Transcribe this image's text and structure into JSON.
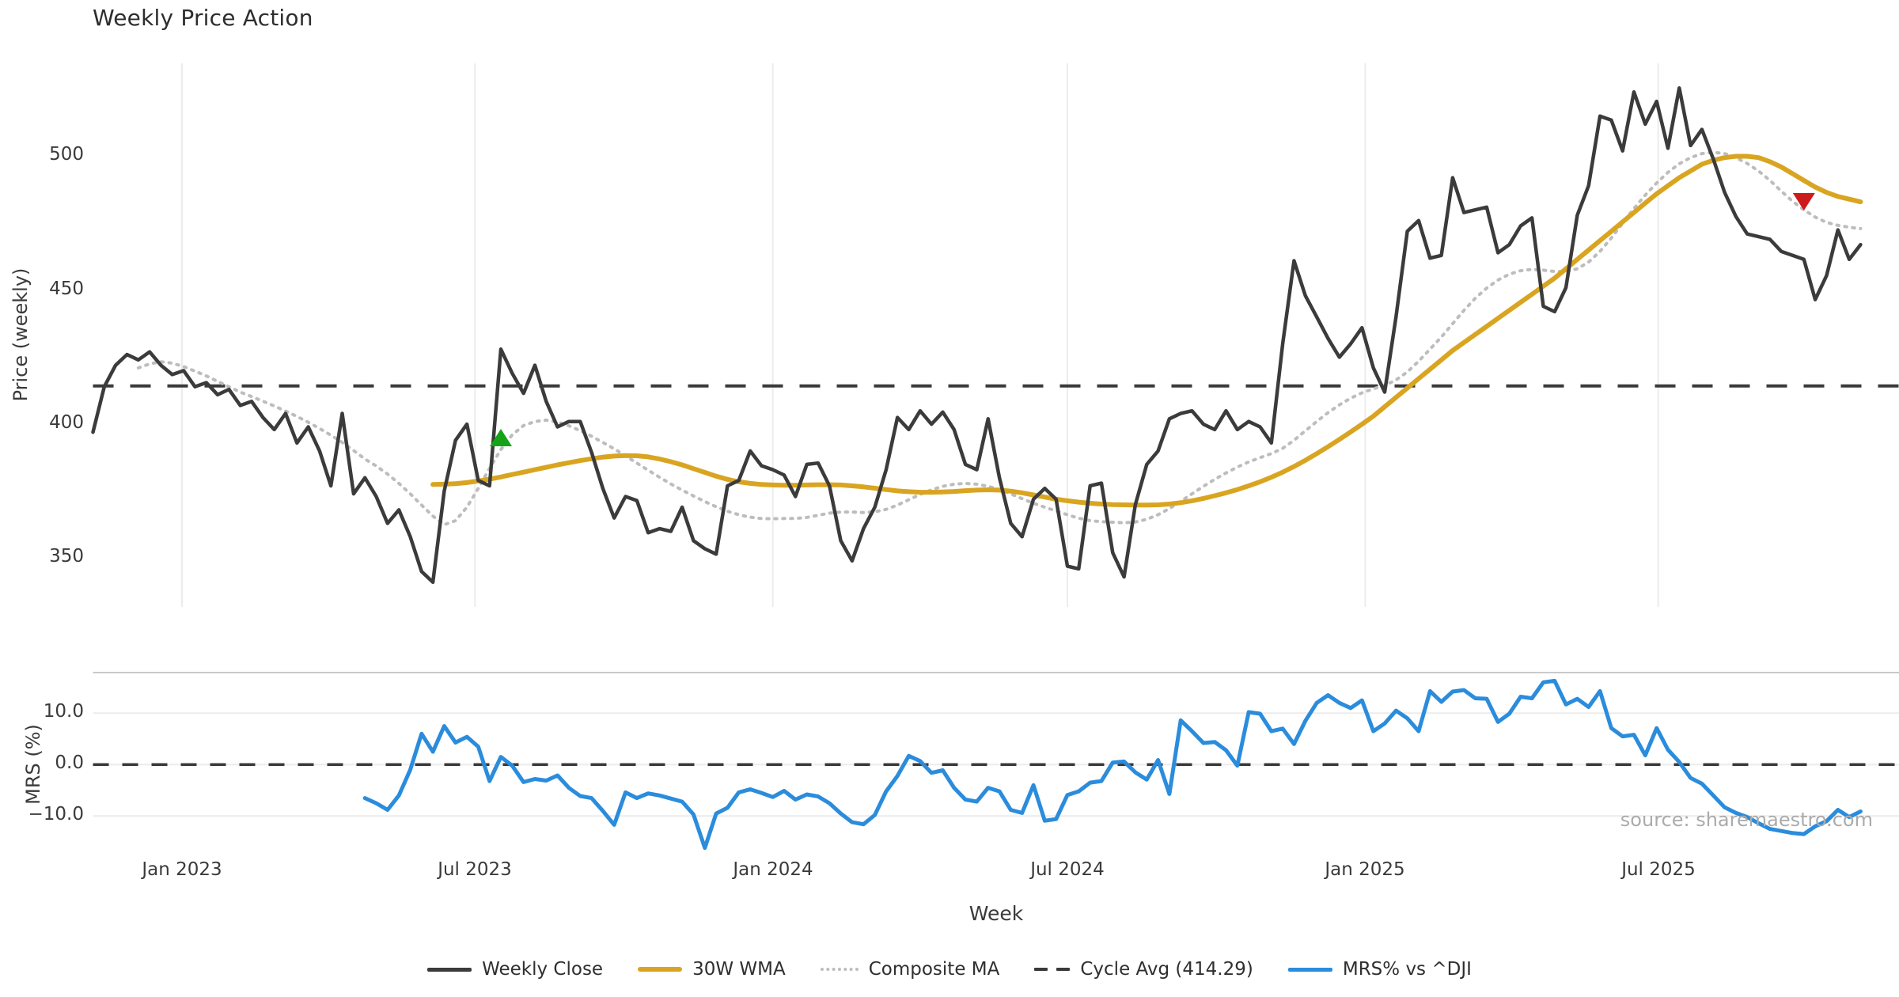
{
  "title": "Weekly Price Action",
  "source_note": "source: sharemaestro.com",
  "axes": {
    "price_label": "Price (weekly)",
    "mrs_label": "MRS (%)",
    "x_label": "Week",
    "price_ticks": [
      {
        "label": "350",
        "value": 350
      },
      {
        "label": "400",
        "value": 400
      },
      {
        "label": "450",
        "value": 450
      },
      {
        "label": "500",
        "value": 500
      }
    ],
    "mrs_ticks": [
      {
        "label": "−10.0",
        "value": -10
      },
      {
        "label": "0.0",
        "value": 0
      },
      {
        "label": "10.0",
        "value": 10
      }
    ],
    "x_ticks": [
      {
        "label": "Jan 2023",
        "date": "2023-01-01"
      },
      {
        "label": "Jul 2023",
        "date": "2023-07-01"
      },
      {
        "label": "Jan 2024",
        "date": "2024-01-01"
      },
      {
        "label": "Jul 2024",
        "date": "2024-07-01"
      },
      {
        "label": "Jan 2025",
        "date": "2025-01-01"
      },
      {
        "label": "Jul 2025",
        "date": "2025-07-01"
      }
    ]
  },
  "legend": {
    "items": [
      {
        "label": "Weekly Close",
        "series": "close"
      },
      {
        "label": "30W WMA",
        "series": "wma30"
      },
      {
        "label": "Composite MA",
        "series": "composite"
      },
      {
        "label": "Cycle Avg (414.29)",
        "series": "cycle_avg"
      },
      {
        "label": "MRS% vs ^DJI",
        "series": "mrs"
      }
    ]
  },
  "colors": {
    "close": "#3b3b3b",
    "wma30": "#d9a521",
    "composite": "#bdbdbd",
    "cycle_avg": "#3a3a3a",
    "mrs": "#2b8cdc",
    "buy_marker": "#17a317",
    "sell_marker": "#cd1a1a",
    "grid": "#ececec",
    "panel_border": "#c9c9c9",
    "text": "#3a3a3a",
    "muted_text": "#ababab"
  },
  "chart_data": {
    "type": "line",
    "start_date": "2022-11-07",
    "frequency": "weekly",
    "panels": [
      {
        "id": "price",
        "ylabel": "Price (weekly)",
        "ylim": [
          331.8,
          534.7
        ],
        "grid": "vertical"
      },
      {
        "id": "mrs",
        "ylabel": "MRS (%)",
        "ylim": [
          -17.8,
          17.9
        ],
        "grid": "horizontal"
      }
    ],
    "series": [
      {
        "name": "Weekly Close",
        "panel": "price",
        "color_key": "close",
        "style": "solid",
        "width": 4.5,
        "values": [
          397,
          414,
          422,
          426,
          424,
          427,
          422,
          418.5,
          420,
          414,
          415.5,
          411,
          413,
          407,
          408.5,
          402.5,
          398,
          404,
          393,
          399,
          390,
          377,
          404,
          374,
          380,
          373,
          363,
          368,
          358,
          345,
          341,
          375,
          394,
          400,
          379,
          377,
          428,
          419,
          411.5,
          422,
          408.5,
          399,
          401,
          401,
          389.5,
          376,
          365,
          373,
          371.5,
          359.5,
          361,
          360,
          369,
          356.5,
          353.5,
          351.5,
          377,
          379,
          390,
          384.5,
          383,
          381,
          373,
          385,
          385.5,
          377,
          356.5,
          349,
          361,
          369,
          383,
          402.5,
          398,
          405,
          400,
          404.5,
          398,
          385,
          383,
          402,
          380,
          363,
          358,
          372,
          376,
          372,
          347,
          346,
          377,
          378,
          352,
          343,
          370,
          385,
          390,
          402,
          404,
          405,
          400,
          398,
          405,
          398,
          401,
          399,
          393,
          430,
          461,
          448,
          440,
          432,
          425,
          430,
          436,
          421,
          412,
          440,
          472,
          476,
          462,
          463,
          492,
          479,
          480,
          481,
          464,
          467,
          474,
          477,
          444,
          442,
          451,
          478,
          489,
          515,
          513.5,
          502,
          524,
          512,
          520.5,
          503,
          525.5,
          504,
          510,
          499,
          486.5,
          477.5,
          471,
          470,
          469,
          464.5,
          463,
          461.5,
          446.5,
          455.5,
          472.5,
          461.5,
          467
        ]
      },
      {
        "name": "30W WMA",
        "panel": "price",
        "color_key": "wma30",
        "style": "solid",
        "width": 6,
        "values": [
          null,
          null,
          null,
          null,
          null,
          null,
          null,
          null,
          null,
          null,
          null,
          null,
          null,
          null,
          null,
          null,
          null,
          null,
          null,
          null,
          null,
          null,
          null,
          null,
          null,
          null,
          null,
          null,
          null,
          null,
          377.5,
          377.6,
          377.8,
          378.2,
          378.8,
          379.5,
          380.3,
          381.2,
          382.1,
          383,
          383.9,
          384.8,
          385.6,
          386.4,
          387.1,
          387.7,
          388.1,
          388.3,
          388.2,
          387.8,
          387,
          386,
          384.8,
          383.4,
          382,
          380.6,
          379.4,
          378.5,
          377.9,
          377.5,
          377.3,
          377.2,
          377.2,
          377.3,
          377.4,
          377.4,
          377.3,
          377,
          376.6,
          376.1,
          375.6,
          375.1,
          374.8,
          374.6,
          374.6,
          374.7,
          374.9,
          375.2,
          375.4,
          375.5,
          375.4,
          375,
          374.4,
          373.6,
          372.8,
          372,
          371.4,
          370.9,
          370.5,
          370.2,
          370,
          369.9,
          369.8,
          369.8,
          369.9,
          370.2,
          370.7,
          371.4,
          372.3,
          373.3,
          374.4,
          375.6,
          377,
          378.5,
          380.2,
          382.1,
          384.2,
          386.5,
          389,
          391.6,
          394.3,
          397.1,
          400,
          403,
          406.5,
          410,
          413.5,
          417,
          420.5,
          424,
          427.5,
          430.5,
          433.5,
          436.5,
          439.5,
          442.5,
          445.5,
          448.5,
          451.5,
          454.5,
          458,
          461.5,
          465,
          468.5,
          472,
          475.5,
          479,
          482.5,
          486,
          489,
          492,
          494.5,
          497,
          498.5,
          499.5,
          500,
          500,
          499.5,
          498,
          496,
          493.5,
          491,
          488.5,
          486.5,
          485,
          484,
          483
        ]
      },
      {
        "name": "Composite MA",
        "panel": "price",
        "color_key": "composite",
        "style": "dotted",
        "width": 4,
        "values": [
          null,
          null,
          null,
          null,
          421,
          422.5,
          423.3,
          422.8,
          421.5,
          419.8,
          418,
          416,
          414,
          412,
          410.3,
          408.6,
          406.8,
          404.9,
          402.9,
          400.7,
          398.4,
          395.9,
          393.2,
          390.2,
          387,
          384.4,
          381.4,
          377.9,
          374,
          369.8,
          365.7,
          362.5,
          364,
          369,
          376,
          383.5,
          390.5,
          396,
          399.5,
          401,
          401.5,
          400.8,
          399.4,
          397.6,
          395.5,
          393.2,
          390.8,
          388.2,
          385.5,
          382.8,
          380.2,
          377.7,
          375.4,
          373.2,
          371.1,
          369.2,
          367.5,
          366.2,
          365.3,
          364.8,
          364.7,
          364.8,
          364.8,
          365.2,
          366,
          366.8,
          367.2,
          367.2,
          367,
          367.3,
          368.2,
          369.8,
          371.8,
          373.8,
          375.5,
          376.8,
          377.6,
          377.9,
          377.6,
          376.8,
          375.6,
          374,
          372.2,
          370.5,
          369,
          367.6,
          366.2,
          364.9,
          364,
          363.6,
          363.4,
          363.2,
          363.5,
          364.5,
          366.2,
          368.5,
          371.2,
          374,
          376.8,
          379.4,
          381.8,
          384,
          385.9,
          387.5,
          389,
          391,
          394,
          397.5,
          401,
          404.3,
          407.2,
          409.7,
          411.7,
          413.2,
          414.5,
          416.5,
          419.5,
          423.5,
          428,
          432.5,
          437.5,
          442.5,
          447,
          450.8,
          453.8,
          456,
          457.3,
          457.8,
          457.5,
          457,
          457,
          458,
          460.5,
          464.5,
          469.5,
          475,
          480.5,
          485.5,
          490,
          494,
          497.2,
          499.5,
          501,
          501.5,
          501,
          499.5,
          497.3,
          494.5,
          491,
          487,
          483.2,
          480,
          477.3,
          475.3,
          474.2,
          473.5,
          473
        ]
      },
      {
        "name": "MRS% vs ^DJI",
        "panel": "mrs",
        "color_key": "mrs",
        "style": "solid",
        "width": 5,
        "values": [
          null,
          null,
          null,
          null,
          null,
          null,
          null,
          null,
          null,
          null,
          null,
          null,
          null,
          null,
          null,
          null,
          null,
          null,
          null,
          null,
          null,
          null,
          null,
          null,
          -6.5,
          -7.5,
          -8.8,
          -6.0,
          -1.0,
          6.0,
          2.5,
          7.5,
          4.3,
          5.4,
          3.5,
          -3.2,
          1.5,
          -0.2,
          -3.4,
          -2.8,
          -3.1,
          -2.1,
          -4.5,
          -6.1,
          -6.5,
          -9.0,
          -11.7,
          -5.4,
          -6.5,
          -5.6,
          -6.0,
          -6.6,
          -7.2,
          -9.7,
          -16.2,
          -9.5,
          -8.4,
          -5.4,
          -4.8,
          -5.5,
          -6.3,
          -5.1,
          -6.8,
          -5.8,
          -6.2,
          -7.5,
          -9.5,
          -11.2,
          -11.6,
          -9.8,
          -5.2,
          -2.2,
          1.7,
          0.7,
          -1.6,
          -1.1,
          -4.5,
          -6.8,
          -7.2,
          -4.5,
          -5.2,
          -8.8,
          -9.4,
          -4.0,
          -10.9,
          -10.6,
          -5.9,
          -5.2,
          -3.5,
          -3.2,
          0.4,
          0.6,
          -1.5,
          -2.9,
          0.9,
          -5.7,
          8.6,
          6.5,
          4.2,
          4.4,
          2.8,
          -0.2,
          10.2,
          9.9,
          6.5,
          7.0,
          4.0,
          8.5,
          12.0,
          13.5,
          12.0,
          11.0,
          12.5,
          6.5,
          8.0,
          10.5,
          9.0,
          6.5,
          14.3,
          12.2,
          14.2,
          14.5,
          12.9,
          12.8,
          8.3,
          9.9,
          13.2,
          12.9,
          16.0,
          16.3,
          11.7,
          12.8,
          11.2,
          14.3,
          7.1,
          5.5,
          5.8,
          1.8,
          7.1,
          2.9,
          0.5,
          -2.6,
          -3.7,
          -6.0,
          -8.3,
          -9.4,
          -10.2,
          -11.4,
          -12.5,
          -12.9,
          -13.3,
          -13.5,
          -12.0,
          -11.0,
          -8.8,
          -10.2,
          -9.1
        ]
      }
    ],
    "reference_lines": [
      {
        "label": "Cycle Avg (414.29)",
        "panel": "price",
        "value": 414.29,
        "style": "dashed",
        "color_key": "cycle_avg",
        "width": 4,
        "dash": "26 21"
      },
      {
        "label": "Zero",
        "panel": "mrs",
        "value": 0,
        "style": "dashed",
        "color_key": "cycle_avg",
        "width": 3.5,
        "dash": "20 17"
      }
    ],
    "signals": [
      {
        "type": "buy",
        "shape": "triangle-up",
        "date": "2023-07-17",
        "price": 395,
        "color_key": "buy_marker"
      },
      {
        "type": "sell",
        "shape": "triangle-down",
        "date": "2025-09-29",
        "price": 483,
        "color_key": "sell_marker"
      }
    ]
  }
}
